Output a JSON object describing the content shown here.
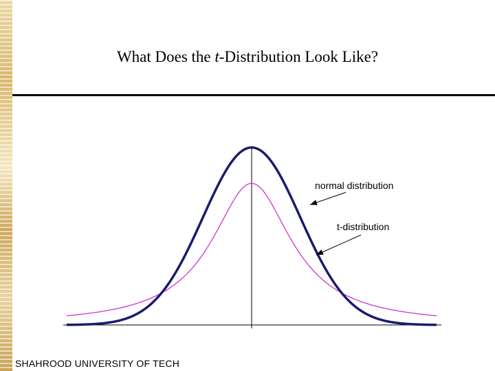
{
  "slide": {
    "title_prefix": "What Does the ",
    "title_italic": "t",
    "title_suffix": "-Distribution Look Like?",
    "footer": "SHAHROOD UNIVERSITY OF TECH"
  },
  "chart_data": {
    "type": "line",
    "title": "What Does the t-Distribution Look Like?",
    "xlabel": "",
    "ylabel": "",
    "xlim": [
      -3.8,
      3.8
    ],
    "ylim": [
      0,
      0.4
    ],
    "grid": false,
    "legend": "none",
    "series": [
      {
        "name": "normal distribution",
        "color": "#1a1a6e",
        "stroke": "thick",
        "kind": "normal"
      },
      {
        "name": "t-distribution",
        "color": "#cc33cc",
        "stroke": "thin",
        "kind": "student-t",
        "df": 1
      }
    ]
  }
}
